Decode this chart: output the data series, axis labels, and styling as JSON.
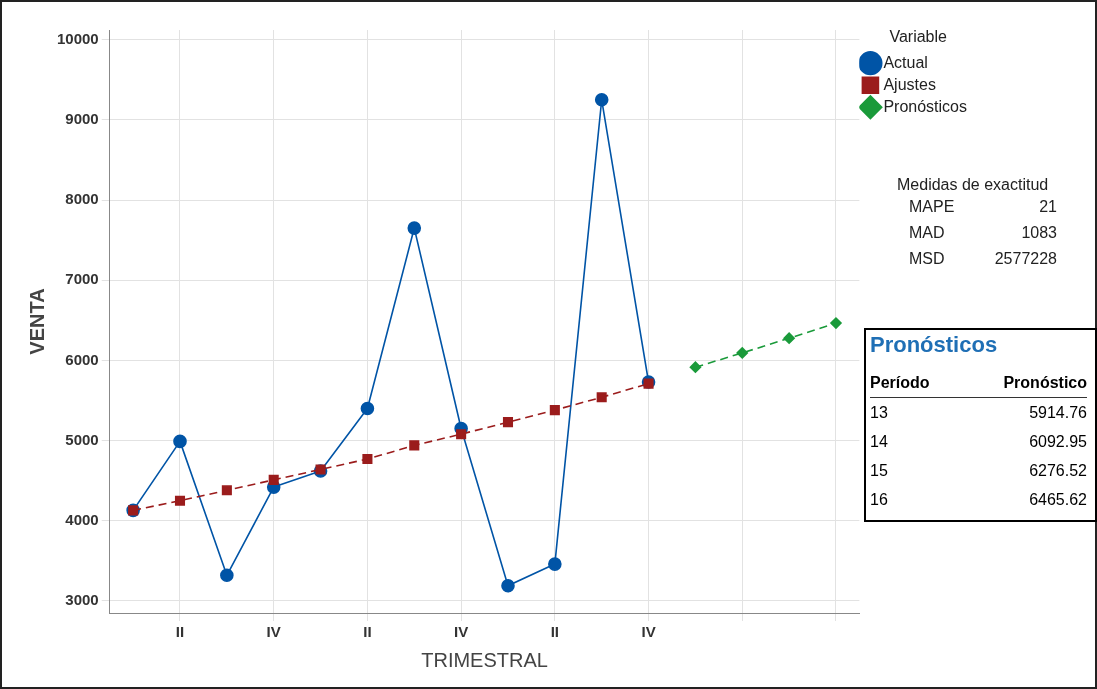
{
  "chart_data": {
    "type": "line",
    "xlabel": "TRIMESTRAL",
    "ylabel": "VENTA",
    "legend_title": "Variable",
    "legend": "top right",
    "grid": true,
    "categories": [
      null,
      "II",
      null,
      "IV",
      null,
      "II",
      null,
      "IV",
      null,
      "II",
      null,
      "IV",
      null,
      null,
      null,
      null
    ],
    "ylim": [
      2850,
      10120
    ],
    "yticks": [
      3000,
      4000,
      5000,
      6000,
      7000,
      8000,
      9000,
      10000
    ],
    "series": [
      {
        "name": "Actual",
        "color": "#0054a6",
        "marker": "circle",
        "line_style": "solid",
        "values": [
          4130,
          4990,
          3320,
          4420,
          4620,
          5400,
          7650,
          5150,
          3190,
          3460,
          9250,
          5730,
          null,
          null,
          null,
          null
        ]
      },
      {
        "name": "Ajustes",
        "color": "#9b1c1c",
        "marker": "square",
        "line_style": "dashed",
        "values": [
          4130,
          4250,
          4380,
          4510,
          4640,
          4770,
          4940,
          5080,
          5230,
          5380,
          5540,
          5710,
          null,
          null,
          null,
          null
        ]
      },
      {
        "name": "Pronósticos",
        "color": "#1a9a3a",
        "marker": "diamond",
        "line_style": "dashed",
        "values": [
          null,
          null,
          null,
          null,
          null,
          null,
          null,
          null,
          null,
          null,
          null,
          null,
          5914.76,
          6092.95,
          6276.52,
          6465.62
        ]
      }
    ],
    "annotations": [
      "Medidas de exactitud",
      "MAPE",
      "21",
      "MAD",
      "1083",
      "MSD",
      "2577228",
      "Pronósticos",
      "Período",
      "Pronóstico",
      "13",
      "5914.76",
      "14",
      "6092.95",
      "15",
      "6276.52",
      "16",
      "6465.62"
    ]
  }
}
